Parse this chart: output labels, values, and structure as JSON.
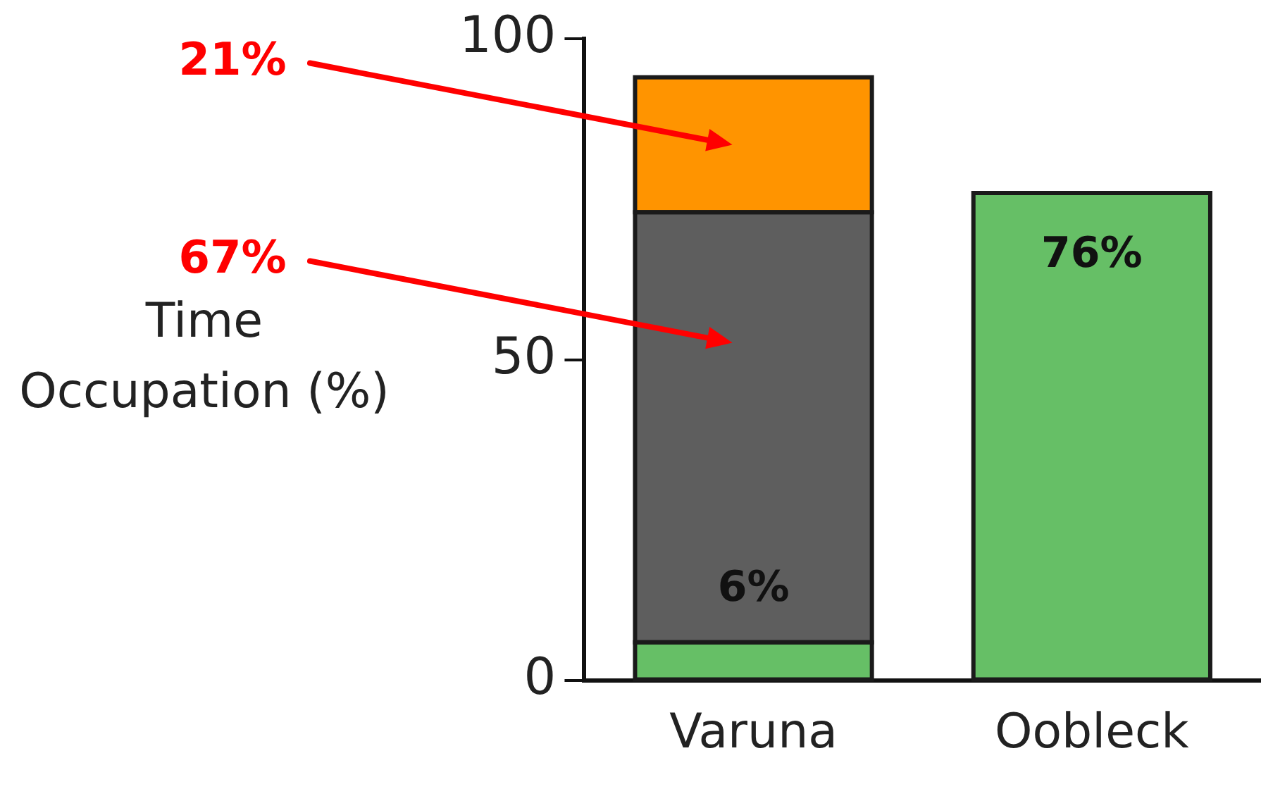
{
  "chart_data": {
    "type": "bar",
    "stacked": true,
    "ylabel": "Time\nOccupation (%)",
    "categories": [
      "Varuna",
      "Oobleck"
    ],
    "series": [
      {
        "color": "#66bf66",
        "values": [
          6,
          76
        ],
        "value_labels": [
          "6%",
          "76%"
        ]
      },
      {
        "color": "#5e5e5e",
        "values": [
          67,
          null
        ]
      },
      {
        "color": "#ff9400",
        "values": [
          21,
          null
        ]
      }
    ],
    "ylim": [
      0,
      100
    ],
    "yticks": [
      0,
      50,
      100
    ],
    "grid": false,
    "legend": false,
    "annotations": [
      "21%",
      "67%"
    ]
  }
}
